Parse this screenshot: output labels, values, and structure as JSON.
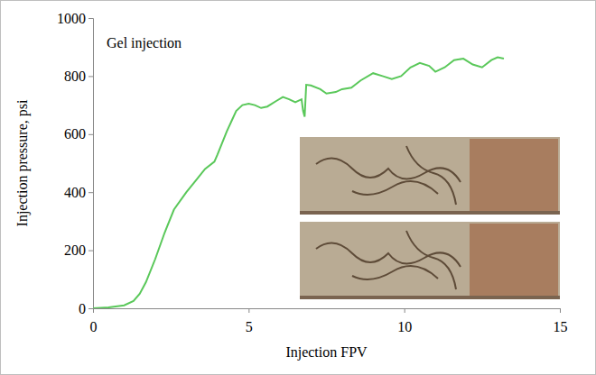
{
  "chart_data": {
    "type": "line",
    "annotation": "Gel injection",
    "x_label": "Injection FPV",
    "y_label": "Injection pressure, psi",
    "x": [
      0,
      0.5,
      1,
      1.3,
      1.5,
      1.7,
      2,
      2.3,
      2.6,
      3,
      3.3,
      3.6,
      3.9,
      4,
      4.3,
      4.6,
      4.8,
      5,
      5.2,
      5.4,
      5.6,
      5.9,
      6.1,
      6.3,
      6.5,
      6.7,
      6.75,
      6.8,
      6.85,
      7,
      7.3,
      7.5,
      7.8,
      8,
      8.3,
      8.6,
      9,
      9.3,
      9.6,
      9.9,
      10.2,
      10.5,
      10.8,
      11,
      11.3,
      11.6,
      11.9,
      12.2,
      12.5,
      12.8,
      13,
      13.2
    ],
    "values": [
      0,
      3,
      10,
      25,
      50,
      90,
      170,
      260,
      340,
      400,
      440,
      480,
      505,
      530,
      610,
      680,
      700,
      705,
      700,
      690,
      695,
      715,
      728,
      720,
      710,
      720,
      680,
      660,
      770,
      768,
      755,
      740,
      745,
      755,
      760,
      785,
      810,
      800,
      790,
      800,
      830,
      845,
      835,
      815,
      830,
      855,
      860,
      840,
      830,
      855,
      865,
      860
    ],
    "color": "#5ac85a",
    "xlim": [
      0,
      15
    ],
    "ylim": [
      0,
      1000
    ],
    "xticks": [
      0,
      5,
      10,
      15
    ],
    "yticks": [
      0,
      200,
      400,
      600,
      800,
      1000
    ],
    "grid": false
  }
}
